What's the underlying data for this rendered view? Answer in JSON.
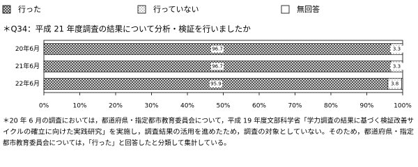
{
  "chart_data": {
    "type": "stacked-bar-horizontal",
    "title": "＊Q34：平成 21 年度調査の結果について分析・検証を行いましたか",
    "categories": [
      "20年6月",
      "21年6月",
      "22年6月"
    ],
    "series": [
      {
        "name": "行った",
        "color": "#444444",
        "values": [
          96.7,
          96.7,
          95.9
        ]
      },
      {
        "name": "行っていない",
        "color": "#888888",
        "values": [
          3.3,
          3.3,
          3.8
        ]
      },
      {
        "name": "無回答",
        "color": "#ffffff",
        "values": [
          0,
          0,
          0.3
        ]
      }
    ],
    "xlim": [
      0,
      100
    ],
    "xticks": [
      {
        "value": 0,
        "label": "0%"
      },
      {
        "value": 10,
        "label": "10%"
      },
      {
        "value": 20,
        "label": "20%"
      },
      {
        "value": 30,
        "label": "30%"
      },
      {
        "value": 40,
        "label": "40%"
      },
      {
        "value": 50,
        "label": "50%"
      },
      {
        "value": 60,
        "label": "60%"
      },
      {
        "value": 70,
        "label": "70%"
      },
      {
        "value": 80,
        "label": "80%"
      },
      {
        "value": 90,
        "label": "90%"
      },
      {
        "value": 100,
        "label": "100%"
      }
    ],
    "labeled_series": [
      0,
      1
    ],
    "notes": [
      "＊20 年 6 月の調査においては，都道府県・指定都市教育委員会について，平成 19 年度文部科学省「学力調査の結果に基づく検証改善サ",
      "イクルの確立に向けた実践研究」を実施し，調査結果の活用を進めたため，調査の対象としていない。そのため，都道府県・指定",
      "都市教育委員会については，「行った」と回答したと分類して集計している。"
    ]
  }
}
